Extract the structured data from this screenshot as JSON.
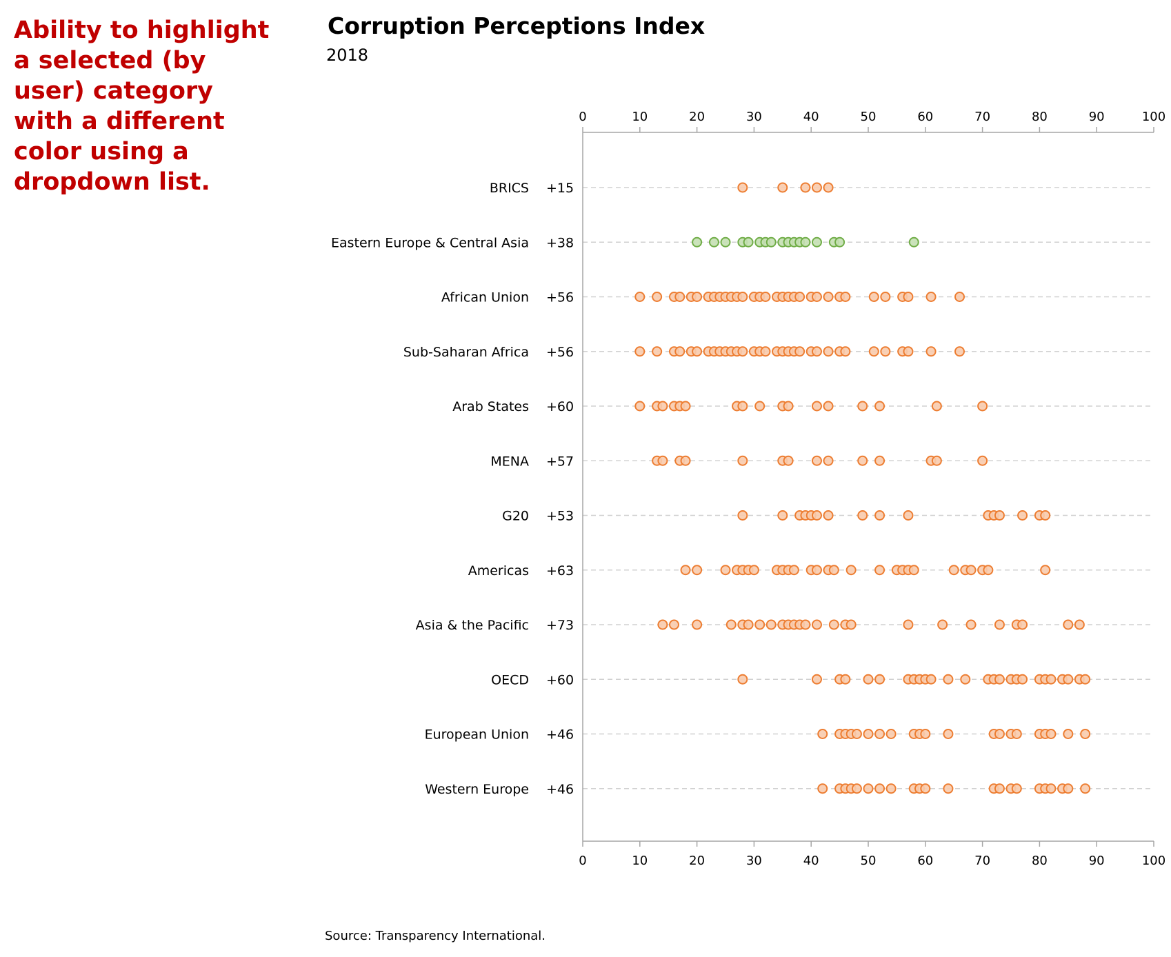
{
  "annotation": {
    "text": "Ability to highlight a selected (by user) category with a different color using a dropdown list.",
    "color": "#c00000"
  },
  "chart_data": {
    "type": "scatter",
    "title": "Corruption Perceptions Index",
    "subtitle": "2018",
    "source": "Source: Transparency International.",
    "xlim": [
      0,
      100
    ],
    "xticks": [
      "0",
      "10",
      "20",
      "30",
      "40",
      "50",
      "60",
      "70",
      "80",
      "90",
      "100"
    ],
    "x_axis_position": "top and bottom",
    "grid": "dashed horizontal lines per category",
    "highlighted_category": "Eastern Europe & Central Asia",
    "colors": {
      "default_stroke": "#ed7d31",
      "default_fill": "#f8cbad",
      "highlight_stroke": "#70ad47",
      "highlight_fill": "#c5e0b4",
      "grid": "#d0d0d0",
      "axis": "#a6a6a6"
    },
    "categories": [
      {
        "name": "BRICS",
        "count_label": "+15",
        "values": [
          28,
          35,
          39,
          41,
          43
        ]
      },
      {
        "name": "Eastern Europe & Central Asia",
        "count_label": "+38",
        "values": [
          20,
          23,
          25,
          28,
          29,
          31,
          32,
          33,
          35,
          36,
          37,
          38,
          39,
          41,
          44,
          45,
          58
        ]
      },
      {
        "name": "African Union",
        "count_label": "+56",
        "values": [
          10,
          13,
          16,
          17,
          19,
          20,
          22,
          23,
          24,
          25,
          26,
          27,
          28,
          30,
          31,
          32,
          34,
          35,
          36,
          37,
          38,
          40,
          41,
          43,
          45,
          46,
          51,
          53,
          56,
          57,
          61,
          66
        ]
      },
      {
        "name": "Sub-Saharan Africa",
        "count_label": "+56",
        "values": [
          10,
          13,
          16,
          17,
          19,
          20,
          22,
          23,
          24,
          25,
          26,
          27,
          28,
          30,
          31,
          32,
          34,
          35,
          36,
          37,
          38,
          40,
          41,
          43,
          45,
          46,
          51,
          53,
          56,
          57,
          61,
          66
        ]
      },
      {
        "name": "Arab States",
        "count_label": "+60",
        "values": [
          10,
          13,
          14,
          16,
          17,
          18,
          27,
          28,
          31,
          35,
          36,
          41,
          43,
          49,
          52,
          62,
          70
        ]
      },
      {
        "name": "MENA",
        "count_label": "+57",
        "values": [
          13,
          14,
          17,
          18,
          28,
          35,
          36,
          41,
          43,
          49,
          52,
          61,
          62,
          70
        ]
      },
      {
        "name": "G20",
        "count_label": "+53",
        "values": [
          28,
          35,
          38,
          39,
          40,
          41,
          43,
          49,
          52,
          57,
          71,
          72,
          73,
          77,
          80,
          81
        ]
      },
      {
        "name": "Americas",
        "count_label": "+63",
        "values": [
          18,
          20,
          25,
          27,
          28,
          29,
          30,
          34,
          35,
          36,
          37,
          40,
          41,
          43,
          44,
          47,
          52,
          55,
          56,
          57,
          58,
          65,
          67,
          68,
          70,
          71,
          81
        ]
      },
      {
        "name": "Asia & the Pacific",
        "count_label": "+73",
        "values": [
          14,
          16,
          20,
          26,
          28,
          29,
          31,
          33,
          35,
          36,
          37,
          38,
          39,
          41,
          44,
          46,
          47,
          57,
          63,
          68,
          73,
          76,
          77,
          85,
          87
        ]
      },
      {
        "name": "OECD",
        "count_label": "+60",
        "values": [
          28,
          41,
          45,
          46,
          50,
          52,
          57,
          58,
          59,
          60,
          61,
          64,
          67,
          71,
          72,
          73,
          75,
          76,
          77,
          80,
          81,
          82,
          84,
          85,
          87,
          88
        ]
      },
      {
        "name": "European Union",
        "count_label": "+46",
        "values": [
          42,
          45,
          46,
          47,
          48,
          50,
          52,
          54,
          58,
          59,
          60,
          64,
          72,
          73,
          75,
          76,
          80,
          81,
          82,
          85,
          88
        ]
      },
      {
        "name": "Western Europe",
        "count_label": "+46",
        "values": [
          42,
          45,
          46,
          47,
          48,
          50,
          52,
          54,
          58,
          59,
          60,
          64,
          72,
          73,
          75,
          76,
          80,
          81,
          82,
          84,
          85,
          88
        ]
      }
    ]
  }
}
